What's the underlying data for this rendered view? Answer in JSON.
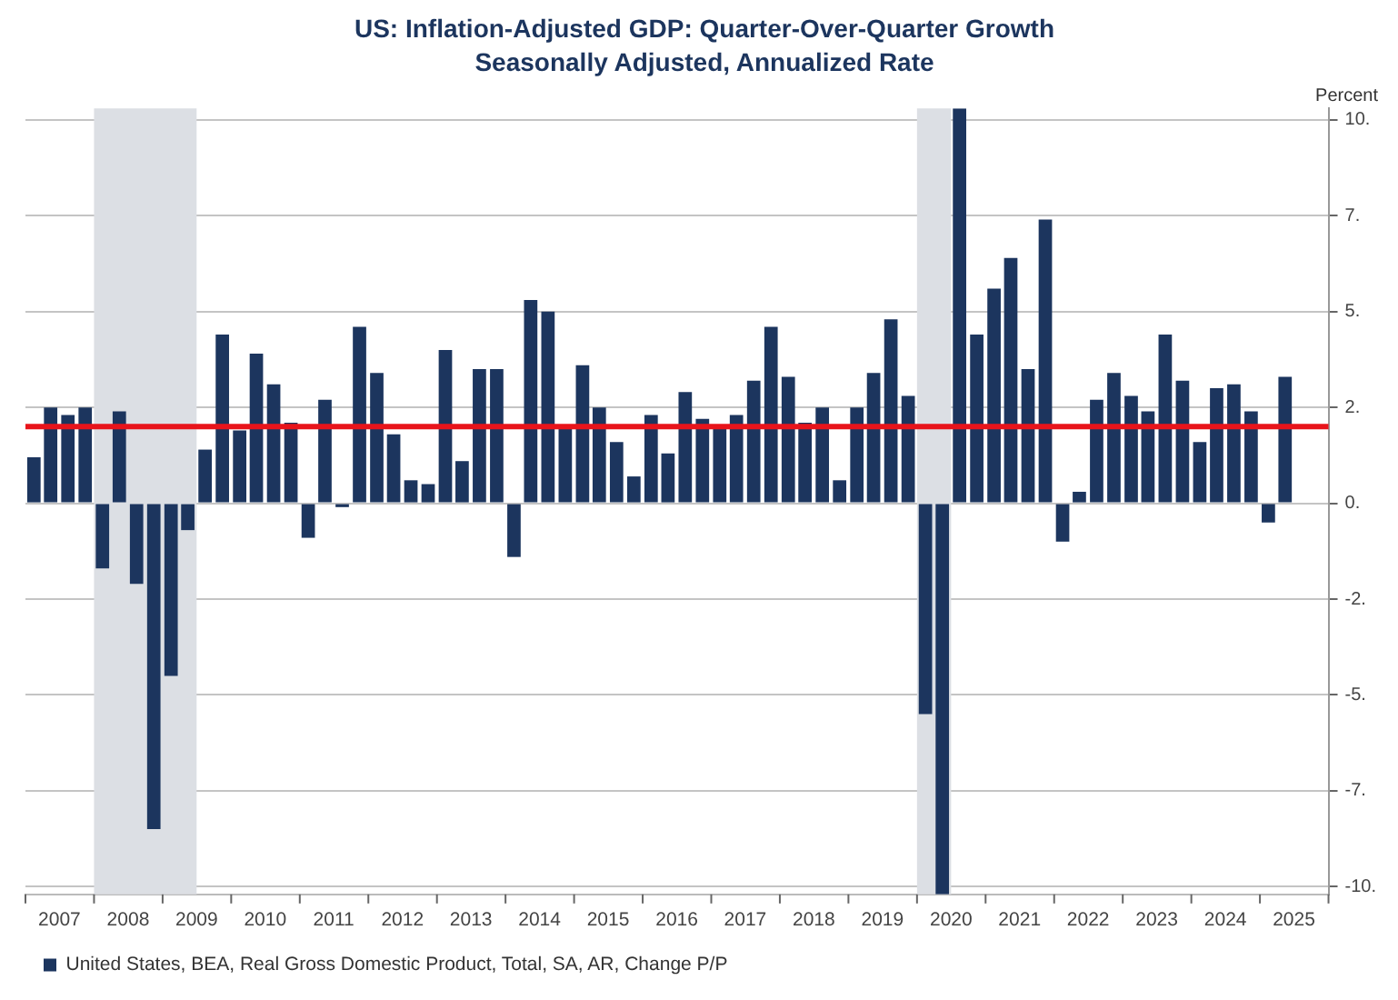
{
  "chart_data": {
    "type": "bar",
    "title": "US: Inflation-Adjusted GDP: Quarter-Over-Quarter Growth",
    "subtitle": "Seasonally Adjusted, Annualized Rate",
    "ylabel": "Percent",
    "x": [
      "2007-02-15",
      "2007-05-15",
      "2007-08-15",
      "2007-11-15",
      "2008-02-15",
      "2008-05-15",
      "2008-08-15",
      "2008-11-15",
      "2009-02-15",
      "2009-05-15",
      "2009-08-15",
      "2009-11-15",
      "2010-02-15",
      "2010-05-15",
      "2010-08-15",
      "2010-11-15",
      "2011-02-15",
      "2011-05-15",
      "2011-08-15",
      "2011-11-15",
      "2012-02-15",
      "2012-05-15",
      "2012-08-15",
      "2012-11-15",
      "2013-02-15",
      "2013-05-15",
      "2013-08-15",
      "2013-11-15",
      "2014-02-15",
      "2014-05-15",
      "2014-08-15",
      "2014-11-15",
      "2015-02-15",
      "2015-05-15",
      "2015-08-15",
      "2015-11-15",
      "2016-02-15",
      "2016-05-15",
      "2016-08-15",
      "2016-11-15",
      "2017-02-15",
      "2017-05-15",
      "2017-08-15",
      "2017-11-15",
      "2018-02-15",
      "2018-05-15",
      "2018-08-15",
      "2018-11-15",
      "2019-02-15",
      "2019-05-15",
      "2019-08-15",
      "2019-11-15",
      "2020-02-15",
      "2020-05-15",
      "2020-08-15",
      "2020-11-15",
      "2021-02-15",
      "2021-05-15",
      "2021-08-15",
      "2021-11-15",
      "2022-02-15",
      "2022-05-15",
      "2022-08-15",
      "2022-11-15",
      "2023-02-15",
      "2023-05-15",
      "2023-08-15",
      "2023-11-15",
      "2024-02-15",
      "2024-05-15",
      "2024-08-15",
      "2024-11-15",
      "2025-02-15",
      "2025-05-15"
    ],
    "series": [
      {
        "name": "United States, BEA, Real Gross Domestic Product, Total, SA, AR, Change P/P",
        "color": "#1c355e",
        "values": [
          1.2,
          2.5,
          2.3,
          2.5,
          -1.7,
          2.4,
          -2.1,
          -8.5,
          -4.5,
          -0.7,
          1.4,
          4.4,
          1.9,
          3.9,
          3.1,
          2.1,
          -0.9,
          2.7,
          -0.1,
          4.6,
          3.4,
          1.8,
          0.6,
          0.5,
          4.0,
          1.1,
          3.5,
          3.5,
          -1.4,
          5.3,
          5.0,
          2.0,
          3.6,
          2.5,
          1.6,
          0.7,
          2.3,
          1.3,
          2.9,
          2.2,
          2.0,
          2.3,
          3.2,
          4.6,
          3.3,
          2.1,
          2.5,
          0.6,
          2.5,
          3.4,
          4.8,
          2.8,
          -5.5,
          -10.2,
          10.3,
          4.4,
          5.6,
          6.4,
          3.5,
          7.4,
          -1.0,
          0.3,
          2.7,
          3.4,
          2.8,
          2.4,
          4.4,
          3.2,
          1.6,
          3.0,
          3.1,
          2.4,
          -0.5,
          3.3
        ]
      }
    ],
    "xlim": [
      "2007-01-01",
      "2026-01-01"
    ],
    "xticks": [
      {
        "value": "2007-01-01",
        "label": null
      },
      {
        "value": "2007-07-01",
        "label": "2007"
      },
      {
        "value": "2008-01-01",
        "label": null
      },
      {
        "value": "2008-07-01",
        "label": "2008"
      },
      {
        "value": "2009-01-01",
        "label": null
      },
      {
        "value": "2009-07-01",
        "label": "2009"
      },
      {
        "value": "2010-01-01",
        "label": null
      },
      {
        "value": "2010-07-01",
        "label": "2010"
      },
      {
        "value": "2011-01-01",
        "label": null
      },
      {
        "value": "2011-07-01",
        "label": "2011"
      },
      {
        "value": "2012-01-01",
        "label": null
      },
      {
        "value": "2012-07-01",
        "label": "2012"
      },
      {
        "value": "2013-01-01",
        "label": null
      },
      {
        "value": "2013-07-01",
        "label": "2013"
      },
      {
        "value": "2014-01-01",
        "label": null
      },
      {
        "value": "2014-07-01",
        "label": "2014"
      },
      {
        "value": "2015-01-01",
        "label": null
      },
      {
        "value": "2015-07-01",
        "label": "2015"
      },
      {
        "value": "2016-01-01",
        "label": null
      },
      {
        "value": "2016-07-01",
        "label": "2016"
      },
      {
        "value": "2017-01-01",
        "label": null
      },
      {
        "value": "2017-07-01",
        "label": "2017"
      },
      {
        "value": "2018-01-01",
        "label": null
      },
      {
        "value": "2018-07-01",
        "label": "2018"
      },
      {
        "value": "2019-01-01",
        "label": null
      },
      {
        "value": "2019-07-01",
        "label": "2019"
      },
      {
        "value": "2020-01-01",
        "label": null
      },
      {
        "value": "2020-07-01",
        "label": "2020"
      },
      {
        "value": "2021-01-01",
        "label": null
      },
      {
        "value": "2021-07-01",
        "label": "2021"
      },
      {
        "value": "2022-01-01",
        "label": null
      },
      {
        "value": "2022-07-01",
        "label": "2022"
      },
      {
        "value": "2023-01-01",
        "label": null
      },
      {
        "value": "2023-07-01",
        "label": "2023"
      },
      {
        "value": "2024-01-01",
        "label": null
      },
      {
        "value": "2024-07-01",
        "label": "2024"
      },
      {
        "value": "2025-01-01",
        "label": null
      },
      {
        "value": "2025-07-01",
        "label": "2025"
      },
      {
        "value": "2026-01-01",
        "label": null
      }
    ],
    "ylim": [
      -10.2,
      10.3
    ],
    "yticks": [
      {
        "value": 10,
        "label": "10."
      },
      {
        "value": 7.5,
        "label": "7."
      },
      {
        "value": 5,
        "label": "5."
      },
      {
        "value": 2.5,
        "label": "2."
      },
      {
        "value": 0,
        "label": "0."
      },
      {
        "value": -2.5,
        "label": "-2."
      },
      {
        "value": -5,
        "label": "-5."
      },
      {
        "value": -7.5,
        "label": "-7."
      },
      {
        "value": -10,
        "label": "-10."
      }
    ],
    "bands": [
      {
        "axis": "x",
        "from": "2008-01-01",
        "to": "2009-07-01",
        "color": "#dcdfe4"
      },
      {
        "axis": "x",
        "from": "2020-01-01",
        "to": "2020-07-01",
        "color": "#dcdfe4"
      }
    ],
    "ref_lines": [
      {
        "axis": "y",
        "value": 2,
        "color": "#e8141b",
        "line_style": "solid"
      }
    ],
    "grid": "y",
    "legend": "bottom"
  }
}
